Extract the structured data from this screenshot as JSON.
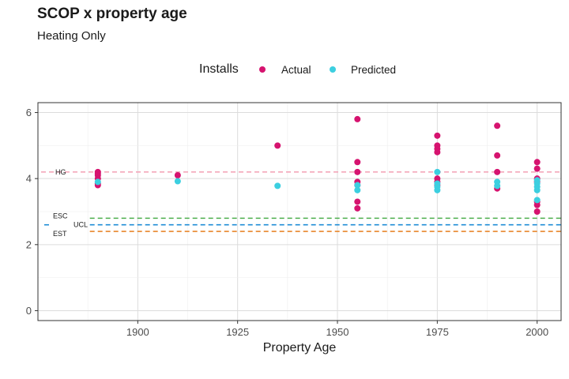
{
  "chart_data": {
    "type": "scatter",
    "title": "SCOP x property age",
    "subtitle": "Heating Only",
    "xlabel": "Property Age",
    "ylabel": "",
    "xlim": [
      1875,
      2006
    ],
    "ylim": [
      -0.3,
      6.3
    ],
    "x_ticks": [
      1900,
      1925,
      1950,
      1975,
      2000
    ],
    "y_ticks": [
      0,
      2,
      4,
      6
    ],
    "grid": true,
    "legend": {
      "title": "Installs",
      "position": "top",
      "entries": [
        {
          "label": "Actual",
          "color": "#d6136f"
        },
        {
          "label": "Predicted",
          "color": "#3ccfe0"
        }
      ]
    },
    "series": [
      {
        "name": "Actual",
        "color": "#d6136f",
        "points": [
          [
            1890,
            4.2
          ],
          [
            1890,
            4.15
          ],
          [
            1890,
            4.1
          ],
          [
            1890,
            4.0
          ],
          [
            1890,
            3.85
          ],
          [
            1890,
            3.8
          ],
          [
            1910,
            4.1
          ],
          [
            1935,
            5.0
          ],
          [
            1955,
            5.8
          ],
          [
            1955,
            4.5
          ],
          [
            1955,
            4.2
          ],
          [
            1955,
            3.9
          ],
          [
            1955,
            3.8
          ],
          [
            1955,
            3.3
          ],
          [
            1955,
            3.1
          ],
          [
            1975,
            5.3
          ],
          [
            1975,
            5.0
          ],
          [
            1975,
            4.9
          ],
          [
            1975,
            4.8
          ],
          [
            1975,
            4.0
          ],
          [
            1975,
            3.9
          ],
          [
            1975,
            3.8
          ],
          [
            1990,
            5.6
          ],
          [
            1990,
            4.7
          ],
          [
            1990,
            4.2
          ],
          [
            1990,
            3.7
          ],
          [
            2000,
            4.5
          ],
          [
            2000,
            4.3
          ],
          [
            2000,
            4.0
          ],
          [
            2000,
            3.9
          ],
          [
            2000,
            3.3
          ],
          [
            2000,
            3.2
          ],
          [
            2000,
            3.0
          ]
        ]
      },
      {
        "name": "Predicted",
        "color": "#3ccfe0",
        "points": [
          [
            1890,
            3.9
          ],
          [
            1910,
            3.92
          ],
          [
            1935,
            3.78
          ],
          [
            1955,
            3.8
          ],
          [
            1955,
            3.65
          ],
          [
            1975,
            4.2
          ],
          [
            1975,
            3.85
          ],
          [
            1975,
            3.75
          ],
          [
            1975,
            3.65
          ],
          [
            1990,
            3.9
          ],
          [
            1990,
            3.78
          ],
          [
            2000,
            3.95
          ],
          [
            2000,
            3.85
          ],
          [
            2000,
            3.75
          ],
          [
            2000,
            3.65
          ],
          [
            2000,
            3.35
          ]
        ]
      }
    ],
    "reference_lines": [
      {
        "label": "HG",
        "y": 4.2,
        "color": "#f4a6ba"
      },
      {
        "label": "ESC",
        "y": 2.8,
        "color": "#4cae4c"
      },
      {
        "label": "UCL",
        "y": 2.6,
        "color": "#1f8dd6"
      },
      {
        "label": "EST",
        "y": 2.4,
        "color": "#e8862a"
      }
    ]
  }
}
